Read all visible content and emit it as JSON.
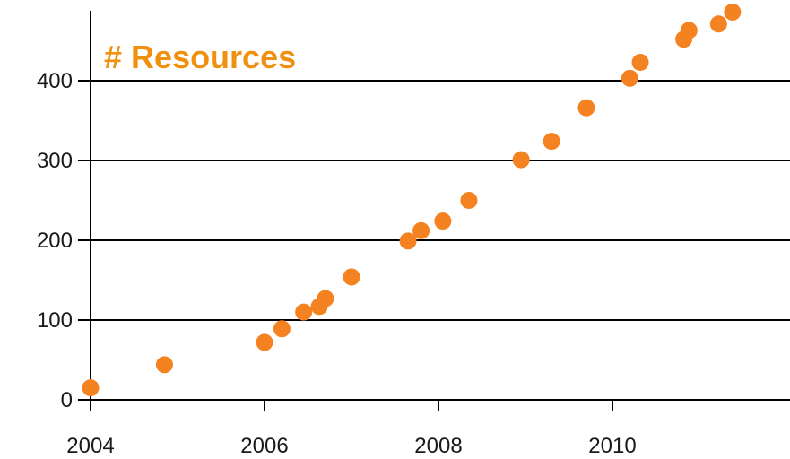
{
  "chart_data": {
    "type": "scatter",
    "title": "# Resources",
    "xlabel": "",
    "ylabel": "",
    "xlim": [
      2004,
      2011.9
    ],
    "ylim": [
      0,
      500
    ],
    "x_ticks": [
      2004,
      2006,
      2008,
      2010
    ],
    "y_ticks": [
      0,
      100,
      200,
      300,
      400
    ],
    "grid": "horizontal",
    "legend": "none",
    "colors": {
      "points": "#f58220",
      "title": "#f0900f",
      "grid": "#000000",
      "axis": "#000000",
      "tick_label": "#1a1a1a"
    },
    "series": [
      {
        "x": [
          2004.0,
          2004.85,
          2006.0,
          2006.2,
          2006.45,
          2006.63,
          2006.7,
          2007.0,
          2007.65,
          2007.8,
          2008.05,
          2008.35,
          2008.95,
          2009.3,
          2009.7,
          2010.2,
          2010.32,
          2010.82,
          2010.88,
          2011.22,
          2011.38
        ],
        "y": [
          15,
          44,
          72,
          89,
          110,
          117,
          127,
          154,
          199,
          212,
          224,
          250,
          301,
          324,
          366,
          403,
          423,
          452,
          463,
          471,
          486
        ]
      }
    ]
  }
}
